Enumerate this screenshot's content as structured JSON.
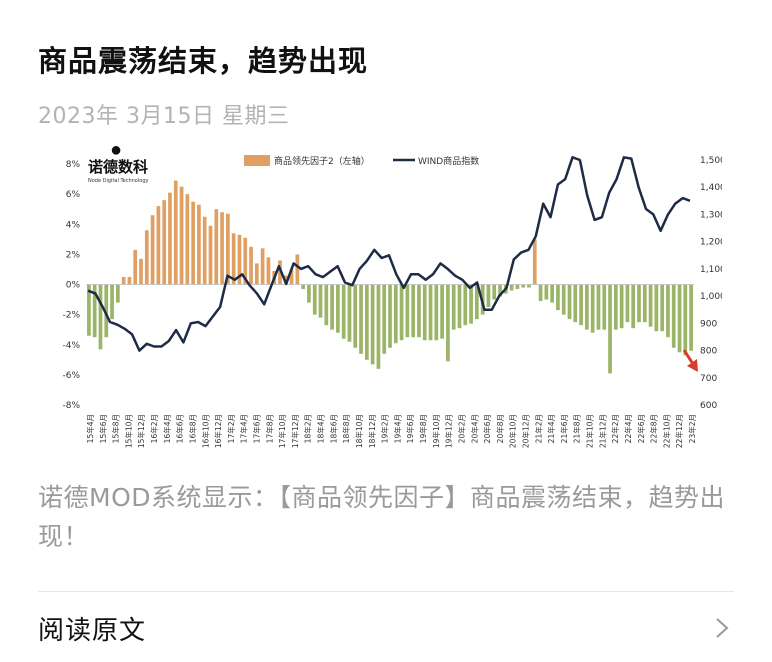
{
  "article": {
    "title": "商品震荡结束，趋势出现",
    "date": "2023年 3月15日 星期三",
    "caption": "诺德MOD系统显示：【商品领先因子】商品震荡结束，趋势出现！",
    "read_more": "阅读原文"
  },
  "icons": {
    "chevron": "chevron-right-icon",
    "arrow": "down-arrow-icon"
  },
  "colors": {
    "bar_pos": "#e0a064",
    "bar_neg": "#9ab567",
    "line": "#1d2b45",
    "arrow": "#d83b2b"
  },
  "logo": {
    "name": "诺德数科",
    "sub": "Node Digital Technology"
  },
  "chart_data": {
    "type": "bar+line",
    "legend": [
      "商品领先因子2（左轴）",
      "WIND商品指数"
    ],
    "left_axis": {
      "ticks": [
        "8%",
        "6%",
        "4%",
        "2%",
        "0%",
        "-2%",
        "-4%",
        "-6%",
        "-8%"
      ],
      "ylim": [
        -8,
        8
      ]
    },
    "right_axis": {
      "ticks": [
        "1,500",
        "1,400",
        "1,300",
        "1,200",
        "1,100",
        "1,000",
        "900",
        "800",
        "700",
        "600"
      ],
      "ylim": [
        600,
        1500
      ]
    },
    "x_labels": [
      "15年4月",
      "15年6月",
      "15年8月",
      "15年10月",
      "15年12月",
      "16年2月",
      "16年4月",
      "16年6月",
      "16年8月",
      "16年10月",
      "16年12月",
      "17年2月",
      "17年4月",
      "17年6月",
      "17年8月",
      "17年10月",
      "17年12月",
      "18年2月",
      "18年4月",
      "18年6月",
      "18年8月",
      "18年10月",
      "18年12月",
      "19年2月",
      "19年4月",
      "19年6月",
      "19年8月",
      "19年10月",
      "19年12月",
      "20年2月",
      "20年4月",
      "20年6月",
      "20年8月",
      "20年10月",
      "20年12月",
      "21年2月",
      "21年4月",
      "21年6月",
      "21年8月",
      "21年10月",
      "21年12月",
      "22年2月",
      "22年4月",
      "22年6月",
      "22年8月",
      "22年10月",
      "22年12月",
      "23年2月"
    ],
    "series": [
      {
        "name": "商品领先因子2（左轴）",
        "type": "bar",
        "values": [
          -3.4,
          -3.5,
          -4.3,
          -3.5,
          -2.3,
          -1.2,
          0.5,
          0.5,
          2.3,
          1.7,
          3.6,
          4.6,
          5.2,
          5.6,
          6.1,
          6.9,
          6.5,
          6.0,
          5.5,
          5.3,
          4.5,
          3.9,
          5.0,
          4.8,
          4.7,
          3.4,
          3.3,
          3.1,
          2.5,
          1.4,
          2.4,
          1.8,
          0.9,
          1.6,
          0.6,
          1.0,
          2.0,
          -0.3,
          -1.2,
          -2.0,
          -2.2,
          -2.7,
          -3.0,
          -3.2,
          -3.6,
          -3.8,
          -4.2,
          -4.6,
          -5.0,
          -5.3,
          -5.6,
          -4.6,
          -4.2,
          -3.9,
          -3.7,
          -3.5,
          -3.5,
          -3.5,
          -3.7,
          -3.7,
          -3.7,
          -3.6,
          -5.1,
          -3.0,
          -2.9,
          -2.7,
          -2.6,
          -2.3,
          -2.0,
          -1.5,
          -1.0,
          -0.8,
          -0.6,
          -0.4,
          -0.3,
          -0.2,
          -0.2,
          3.0,
          -1.1,
          -1.0,
          -1.2,
          -1.7,
          -2.0,
          -2.3,
          -2.5,
          -2.7,
          -3.0,
          -3.2,
          -3.0,
          -3.0,
          -5.9,
          -3.0,
          -2.9,
          -2.5,
          -2.9,
          -2.5,
          -2.5,
          -2.8,
          -3.1,
          -3.1,
          -3.5,
          -4.2,
          -4.5,
          -4.7,
          -4.4
        ]
      },
      {
        "name": "WIND商品指数",
        "type": "line",
        "values": [
          1020,
          1010,
          960,
          905,
          895,
          880,
          860,
          800,
          825,
          815,
          815,
          835,
          875,
          830,
          900,
          905,
          890,
          925,
          960,
          1075,
          1060,
          1080,
          1040,
          1010,
          970,
          1040,
          1110,
          1045,
          1120,
          1100,
          1110,
          1080,
          1070,
          1090,
          1110,
          1050,
          1040,
          1100,
          1130,
          1170,
          1140,
          1150,
          1080,
          1030,
          1080,
          1080,
          1060,
          1080,
          1120,
          1100,
          1075,
          1060,
          1030,
          1050,
          950,
          950,
          1000,
          1030,
          1135,
          1160,
          1170,
          1220,
          1340,
          1290,
          1410,
          1430,
          1510,
          1500,
          1370,
          1280,
          1290,
          1380,
          1430,
          1510,
          1505,
          1400,
          1320,
          1300,
          1240,
          1300,
          1340,
          1360,
          1350
        ]
      }
    ]
  }
}
